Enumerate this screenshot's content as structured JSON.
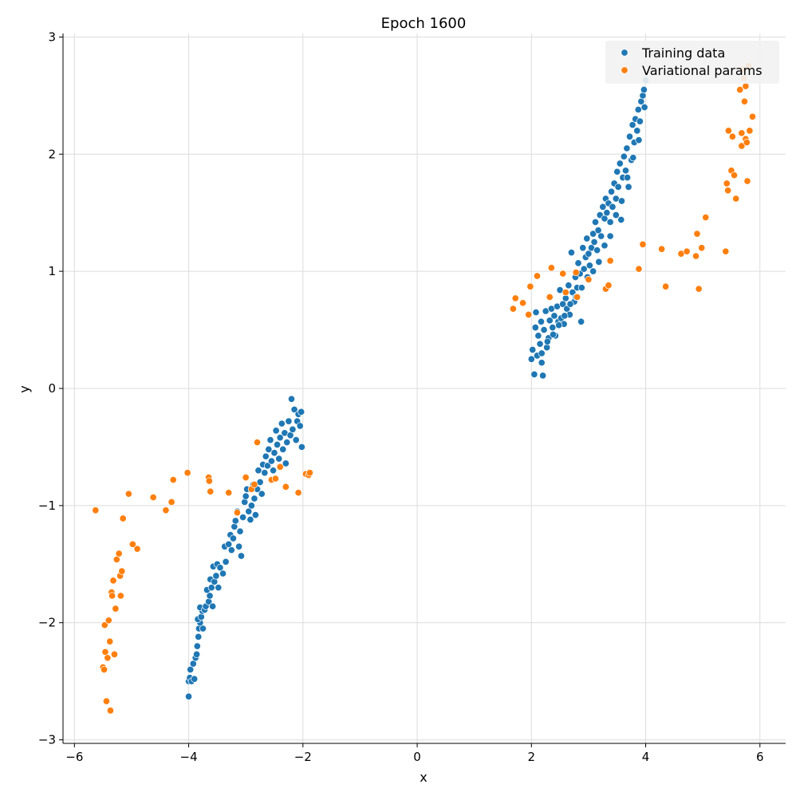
{
  "chart_data": {
    "type": "scatter",
    "title": "Epoch 1600",
    "xlabel": "x",
    "ylabel": "y",
    "xlim": [
      -6.2,
      6.45
    ],
    "ylim": [
      -3.03,
      3.03
    ],
    "xticks": [
      -6,
      -4,
      -2,
      0,
      2,
      4,
      6
    ],
    "yticks": [
      -3,
      -2,
      -1,
      0,
      1,
      2,
      3
    ],
    "xtick_labels": [
      "−6",
      "−4",
      "−2",
      "0",
      "2",
      "4",
      "6"
    ],
    "ytick_labels": [
      "−3",
      "−2",
      "−1",
      "0",
      "1",
      "2",
      "3"
    ],
    "grid": true,
    "legend_position": "top-right",
    "series": [
      {
        "name": "Training data",
        "color": "#1f77b4",
        "points": [
          [
            -4.0,
            -2.63
          ],
          [
            -4.0,
            -2.5
          ],
          [
            -3.98,
            -2.47
          ],
          [
            -3.95,
            -2.5
          ],
          [
            -3.97,
            -2.4
          ],
          [
            -3.92,
            -2.35
          ],
          [
            -3.9,
            -2.48
          ],
          [
            -3.88,
            -2.3
          ],
          [
            -3.86,
            -2.27
          ],
          [
            -3.85,
            -2.2
          ],
          [
            -3.83,
            -2.12
          ],
          [
            -3.82,
            -2.05
          ],
          [
            -3.8,
            -2.0
          ],
          [
            -3.84,
            -1.97
          ],
          [
            -3.78,
            -1.95
          ],
          [
            -3.76,
            -1.9
          ],
          [
            -3.8,
            -1.87
          ],
          [
            -3.75,
            -2.05
          ],
          [
            -3.72,
            -1.89
          ],
          [
            -3.7,
            -1.86
          ],
          [
            -3.68,
            -1.72
          ],
          [
            -3.65,
            -1.82
          ],
          [
            -3.63,
            -1.77
          ],
          [
            -3.6,
            -1.7
          ],
          [
            -3.62,
            -1.63
          ],
          [
            -3.58,
            -1.86
          ],
          [
            -3.55,
            -1.65
          ],
          [
            -3.57,
            -1.52
          ],
          [
            -3.52,
            -1.6
          ],
          [
            -3.5,
            -1.5
          ],
          [
            -3.48,
            -1.7
          ],
          [
            -3.45,
            -1.53
          ],
          [
            -3.4,
            -1.58
          ],
          [
            -3.37,
            -1.35
          ],
          [
            -3.35,
            -1.48
          ],
          [
            -3.3,
            -1.33
          ],
          [
            -3.27,
            -1.25
          ],
          [
            -3.25,
            -1.38
          ],
          [
            -3.22,
            -1.28
          ],
          [
            -3.2,
            -1.18
          ],
          [
            -3.18,
            -1.13
          ],
          [
            -3.15,
            -1.05
          ],
          [
            -3.12,
            -1.35
          ],
          [
            -3.1,
            -1.22
          ],
          [
            -3.08,
            -1.43
          ],
          [
            -3.05,
            -1.1
          ],
          [
            -3.02,
            -0.97
          ],
          [
            -3.0,
            -0.92
          ],
          [
            -2.98,
            -0.86
          ],
          [
            -2.95,
            -1.05
          ],
          [
            -2.92,
            -1.12
          ],
          [
            -2.9,
            -1.0
          ],
          [
            -2.87,
            -0.82
          ],
          [
            -2.85,
            -0.94
          ],
          [
            -2.83,
            -1.08
          ],
          [
            -2.8,
            -0.86
          ],
          [
            -2.78,
            -0.7
          ],
          [
            -2.75,
            -0.8
          ],
          [
            -2.72,
            -0.9
          ],
          [
            -2.7,
            -0.65
          ],
          [
            -2.67,
            -0.72
          ],
          [
            -2.65,
            -0.58
          ],
          [
            -2.62,
            -0.66
          ],
          [
            -2.6,
            -0.52
          ],
          [
            -2.57,
            -0.44
          ],
          [
            -2.55,
            -0.62
          ],
          [
            -2.52,
            -0.7
          ],
          [
            -2.5,
            -0.55
          ],
          [
            -2.47,
            -0.36
          ],
          [
            -2.45,
            -0.48
          ],
          [
            -2.42,
            -0.6
          ],
          [
            -2.4,
            -0.42
          ],
          [
            -2.37,
            -0.3
          ],
          [
            -2.35,
            -0.52
          ],
          [
            -2.32,
            -0.38
          ],
          [
            -2.3,
            -0.64
          ],
          [
            -2.28,
            -0.46
          ],
          [
            -2.25,
            -0.28
          ],
          [
            -2.22,
            -0.4
          ],
          [
            -2.2,
            -0.09
          ],
          [
            -2.18,
            -0.35
          ],
          [
            -2.15,
            -0.18
          ],
          [
            -2.12,
            -0.44
          ],
          [
            -2.1,
            -0.28
          ],
          [
            -2.08,
            -0.22
          ],
          [
            -2.05,
            -0.32
          ],
          [
            -2.03,
            -0.2
          ],
          [
            -2.02,
            -0.5
          ],
          [
            2.0,
            0.25
          ],
          [
            2.02,
            0.33
          ],
          [
            2.05,
            0.12
          ],
          [
            2.07,
            0.52
          ],
          [
            2.08,
            0.65
          ],
          [
            2.1,
            0.28
          ],
          [
            2.12,
            0.45
          ],
          [
            2.15,
            0.38
          ],
          [
            2.17,
            0.57
          ],
          [
            2.18,
            0.22
          ],
          [
            2.2,
            0.11
          ],
          [
            2.22,
            0.5
          ],
          [
            2.25,
            0.66
          ],
          [
            2.27,
            0.35
          ],
          [
            2.3,
            0.43
          ],
          [
            2.32,
            0.58
          ],
          [
            2.35,
            0.68
          ],
          [
            2.37,
            0.52
          ],
          [
            2.4,
            0.62
          ],
          [
            2.42,
            0.45
          ],
          [
            2.45,
            0.7
          ],
          [
            2.47,
            0.57
          ],
          [
            2.5,
            0.84
          ],
          [
            2.52,
            0.6
          ],
          [
            2.55,
            0.72
          ],
          [
            2.57,
            0.55
          ],
          [
            2.6,
            0.77
          ],
          [
            2.62,
            0.68
          ],
          [
            2.65,
            0.88
          ],
          [
            2.67,
            0.63
          ],
          [
            2.7,
            1.16
          ],
          [
            2.72,
            0.82
          ],
          [
            2.75,
            0.74
          ],
          [
            2.77,
            0.95
          ],
          [
            2.8,
            0.86
          ],
          [
            2.82,
            1.07
          ],
          [
            2.85,
            0.98
          ],
          [
            2.87,
            0.57
          ],
          [
            2.9,
            1.2
          ],
          [
            2.92,
            1.02
          ],
          [
            2.95,
            1.12
          ],
          [
            2.97,
            1.28
          ],
          [
            3.0,
            1.15
          ],
          [
            3.02,
            1.05
          ],
          [
            3.05,
            1.2
          ],
          [
            3.08,
            1.32
          ],
          [
            3.1,
            1.25
          ],
          [
            3.12,
            1.42
          ],
          [
            3.15,
            1.18
          ],
          [
            3.17,
            1.35
          ],
          [
            3.2,
            1.48
          ],
          [
            3.22,
            1.3
          ],
          [
            3.25,
            1.55
          ],
          [
            3.28,
            1.45
          ],
          [
            3.3,
            1.62
          ],
          [
            3.32,
            1.5
          ],
          [
            3.35,
            1.58
          ],
          [
            3.38,
            1.42
          ],
          [
            3.4,
            1.68
          ],
          [
            3.42,
            1.55
          ],
          [
            3.45,
            1.75
          ],
          [
            3.48,
            1.62
          ],
          [
            3.5,
            1.85
          ],
          [
            3.52,
            1.72
          ],
          [
            3.55,
            1.92
          ],
          [
            3.57,
            1.44
          ],
          [
            3.6,
            1.8
          ],
          [
            3.62,
            1.98
          ],
          [
            3.65,
            1.86
          ],
          [
            3.67,
            2.05
          ],
          [
            3.7,
            1.72
          ],
          [
            3.72,
            2.15
          ],
          [
            3.75,
            1.95
          ],
          [
            3.77,
            2.25
          ],
          [
            3.8,
            2.1
          ],
          [
            3.82,
            2.3
          ],
          [
            3.85,
            2.2
          ],
          [
            3.87,
            2.38
          ],
          [
            3.9,
            2.28
          ],
          [
            3.92,
            2.45
          ],
          [
            3.95,
            2.5
          ],
          [
            3.97,
            2.55
          ],
          [
            4.0,
            2.63
          ],
          [
            3.98,
            2.4
          ],
          [
            3.88,
            2.12
          ],
          [
            3.78,
            1.97
          ],
          [
            3.68,
            1.8
          ],
          [
            3.58,
            1.6
          ],
          [
            3.48,
            1.48
          ],
          [
            3.38,
            1.3
          ],
          [
            3.28,
            1.22
          ],
          [
            3.18,
            1.08
          ],
          [
            3.08,
            1.0
          ],
          [
            2.98,
            0.95
          ],
          [
            2.88,
            0.86
          ],
          [
            2.78,
            0.78
          ],
          [
            2.68,
            0.72
          ],
          [
            2.58,
            0.62
          ],
          [
            2.48,
            0.54
          ],
          [
            2.38,
            0.46
          ],
          [
            2.28,
            0.4
          ],
          [
            2.18,
            0.3
          ]
        ]
      },
      {
        "name": "Variational params",
        "color": "#ff7f0e",
        "points": [
          [
            -5.63,
            -1.04
          ],
          [
            -5.5,
            -2.38
          ],
          [
            -5.48,
            -2.4
          ],
          [
            -5.47,
            -2.02
          ],
          [
            -5.46,
            -2.25
          ],
          [
            -5.44,
            -2.67
          ],
          [
            -5.42,
            -2.3
          ],
          [
            -5.4,
            -1.98
          ],
          [
            -5.38,
            -2.16
          ],
          [
            -5.37,
            -2.75
          ],
          [
            -5.35,
            -1.74
          ],
          [
            -5.34,
            -1.77
          ],
          [
            -5.32,
            -1.64
          ],
          [
            -5.3,
            -2.27
          ],
          [
            -5.28,
            -1.88
          ],
          [
            -5.26,
            -1.46
          ],
          [
            -5.22,
            -1.41
          ],
          [
            -5.2,
            -1.6
          ],
          [
            -5.19,
            -1.77
          ],
          [
            -5.17,
            -1.56
          ],
          [
            -5.15,
            -1.11
          ],
          [
            -5.05,
            -0.9
          ],
          [
            -4.98,
            -1.33
          ],
          [
            -4.9,
            -1.37
          ],
          [
            -4.62,
            -0.93
          ],
          [
            -4.4,
            -1.04
          ],
          [
            -4.3,
            -0.97
          ],
          [
            -4.27,
            -0.78
          ],
          [
            -4.02,
            -0.72
          ],
          [
            -3.65,
            -0.76
          ],
          [
            -3.64,
            -0.79
          ],
          [
            -3.62,
            -0.88
          ],
          [
            -3.3,
            -0.89
          ],
          [
            -3.15,
            -1.06
          ],
          [
            -3.0,
            -0.76
          ],
          [
            -2.9,
            -0.86
          ],
          [
            -2.85,
            -0.82
          ],
          [
            -2.8,
            -0.46
          ],
          [
            -2.55,
            -0.78
          ],
          [
            -2.48,
            -0.77
          ],
          [
            -2.4,
            -0.67
          ],
          [
            -2.3,
            -0.84
          ],
          [
            -2.08,
            -0.89
          ],
          [
            -1.95,
            -0.73
          ],
          [
            -1.9,
            -0.74
          ],
          [
            -1.88,
            -0.72
          ],
          [
            1.68,
            0.68
          ],
          [
            1.72,
            0.77
          ],
          [
            1.85,
            0.73
          ],
          [
            1.95,
            0.63
          ],
          [
            1.98,
            0.87
          ],
          [
            2.1,
            0.96
          ],
          [
            2.32,
            0.78
          ],
          [
            2.35,
            1.03
          ],
          [
            2.55,
            0.98
          ],
          [
            2.6,
            0.82
          ],
          [
            2.78,
            0.99
          ],
          [
            2.8,
            0.78
          ],
          [
            3.0,
            0.93
          ],
          [
            3.3,
            0.85
          ],
          [
            3.35,
            0.88
          ],
          [
            3.38,
            1.09
          ],
          [
            3.88,
            1.02
          ],
          [
            3.95,
            1.23
          ],
          [
            4.28,
            1.19
          ],
          [
            4.35,
            0.87
          ],
          [
            4.62,
            1.15
          ],
          [
            4.72,
            1.17
          ],
          [
            4.88,
            1.13
          ],
          [
            4.9,
            1.32
          ],
          [
            4.93,
            0.85
          ],
          [
            4.98,
            1.2
          ],
          [
            5.05,
            1.46
          ],
          [
            5.4,
            1.17
          ],
          [
            5.42,
            1.75
          ],
          [
            5.44,
            1.69
          ],
          [
            5.45,
            2.2
          ],
          [
            5.5,
            1.86
          ],
          [
            5.52,
            2.15
          ],
          [
            5.55,
            1.82
          ],
          [
            5.58,
            1.62
          ],
          [
            5.65,
            2.55
          ],
          [
            5.68,
            2.18
          ],
          [
            5.68,
            2.07
          ],
          [
            5.7,
            2.72
          ],
          [
            5.73,
            2.45
          ],
          [
            5.75,
            2.58
          ],
          [
            5.75,
            2.13
          ],
          [
            5.77,
            2.1
          ],
          [
            5.78,
            1.77
          ],
          [
            5.8,
            2.75
          ],
          [
            5.82,
            2.2
          ],
          [
            5.87,
            2.32
          ],
          [
            5.72,
            2.65
          ]
        ]
      }
    ]
  }
}
